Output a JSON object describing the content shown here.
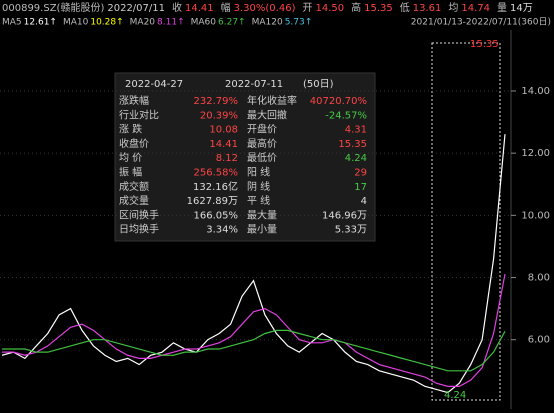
{
  "header": {
    "items": [
      {
        "label": "000899.SZ(赣能股份)",
        "value": "2022/07/11"
      },
      {
        "label": "收",
        "value": "14.41"
      },
      {
        "label": "幅",
        "value": "3.30%(0.46)"
      },
      {
        "label": "开",
        "value": "14.50"
      },
      {
        "label": "高",
        "value": "15.35"
      },
      {
        "label": "低",
        "value": "13.61"
      },
      {
        "label": "均",
        "value": "14.74"
      },
      {
        "label": "量",
        "value": "14万"
      }
    ],
    "ma": [
      {
        "label": "MA5",
        "value": "12.61↑"
      },
      {
        "label": "MA10",
        "value": "10.28↑"
      },
      {
        "label": "MA20",
        "value": "8.11↑"
      },
      {
        "label": "MA60",
        "value": "6.27↑"
      },
      {
        "label": "MA120",
        "value": "5.73↑"
      }
    ],
    "range": "2021/01/13-2022/07/11(360日)"
  },
  "panel": {
    "start": "2022-04-27",
    "end": "2022-07-11",
    "days": "(50日)",
    "rows": [
      [
        "涨跌幅",
        "232.79%",
        "年化收益率",
        "40720.70%"
      ],
      [
        "行业对比",
        "20.39%",
        "最大回撤",
        "-24.57%"
      ],
      [
        "涨  跌",
        "10.08",
        "开盘价",
        "4.31"
      ],
      [
        "收盘价",
        "14.41",
        "最高价",
        "15.35"
      ],
      [
        "均  价",
        "8.12",
        "最低价",
        "4.24"
      ],
      [
        "振  幅",
        "256.58%",
        "阳  线",
        "29"
      ],
      [
        "成交额",
        "132.16亿",
        "阴  线",
        "17"
      ],
      [
        "成交量",
        "1627.89万",
        "平  线",
        "4"
      ],
      [
        "区间换手",
        "166.05%",
        "最大量",
        "146.96万"
      ],
      [
        "日均换手",
        "3.34%",
        "最小量",
        "5.33万"
      ]
    ]
  },
  "chart_data": {
    "type": "line",
    "categories": [
      null,
      null,
      null,
      null,
      null,
      null,
      null,
      null,
      null,
      null,
      null,
      null,
      null,
      null,
      null,
      null,
      null,
      null,
      null,
      null,
      null,
      null,
      null,
      null,
      null,
      null,
      null,
      null,
      null,
      null,
      null,
      null,
      null,
      null,
      null,
      null,
      null,
      null,
      null,
      null,
      null,
      null,
      null,
      null,
      null
    ],
    "series": [
      {
        "name": "MA5",
        "color": "#ffffff",
        "values": [
          5.5,
          5.6,
          5.4,
          5.8,
          6.2,
          6.8,
          7.0,
          6.3,
          5.8,
          5.5,
          5.3,
          5.4,
          5.2,
          5.5,
          5.6,
          5.9,
          5.7,
          5.6,
          6.0,
          6.2,
          6.5,
          7.4,
          7.9,
          6.8,
          6.2,
          5.8,
          5.6,
          5.9,
          6.2,
          6.0,
          5.6,
          5.3,
          5.2,
          5.0,
          4.9,
          4.8,
          4.7,
          4.5,
          4.4,
          4.3,
          4.6,
          5.2,
          6.0,
          8.6,
          12.61
        ]
      },
      {
        "name": "MA20",
        "color": "#e040e0",
        "values": [
          5.6,
          5.6,
          5.5,
          5.6,
          5.8,
          6.1,
          6.4,
          6.5,
          6.3,
          6.0,
          5.7,
          5.5,
          5.4,
          5.4,
          5.5,
          5.6,
          5.7,
          5.7,
          5.8,
          5.9,
          6.1,
          6.5,
          6.9,
          7.0,
          6.8,
          6.4,
          6.0,
          5.9,
          5.9,
          6.0,
          5.9,
          5.6,
          5.4,
          5.2,
          5.1,
          5.0,
          4.9,
          4.8,
          4.6,
          4.5,
          4.5,
          4.7,
          5.1,
          6.2,
          8.11
        ]
      },
      {
        "name": "MA60",
        "color": "#40c040",
        "values": [
          5.7,
          5.7,
          5.7,
          5.6,
          5.6,
          5.7,
          5.8,
          5.9,
          6.0,
          6.0,
          5.9,
          5.8,
          5.7,
          5.6,
          5.5,
          5.5,
          5.6,
          5.6,
          5.7,
          5.7,
          5.8,
          5.9,
          6.0,
          6.2,
          6.3,
          6.3,
          6.2,
          6.1,
          6.0,
          6.0,
          5.9,
          5.8,
          5.7,
          5.6,
          5.5,
          5.4,
          5.3,
          5.2,
          5.1,
          5.0,
          5.0,
          5.0,
          5.2,
          5.6,
          6.27
        ]
      }
    ],
    "ylim": [
      3.9,
      15.8
    ],
    "yticks": [
      {
        "value": 6,
        "label": "6.00"
      },
      {
        "value": 8,
        "label": "8.00"
      },
      {
        "value": 10,
        "label": "10.00"
      },
      {
        "value": 12,
        "label": "12.00"
      },
      {
        "value": 14,
        "label": "14.00"
      }
    ],
    "annotations": [
      "4.24",
      "15.35"
    ]
  }
}
